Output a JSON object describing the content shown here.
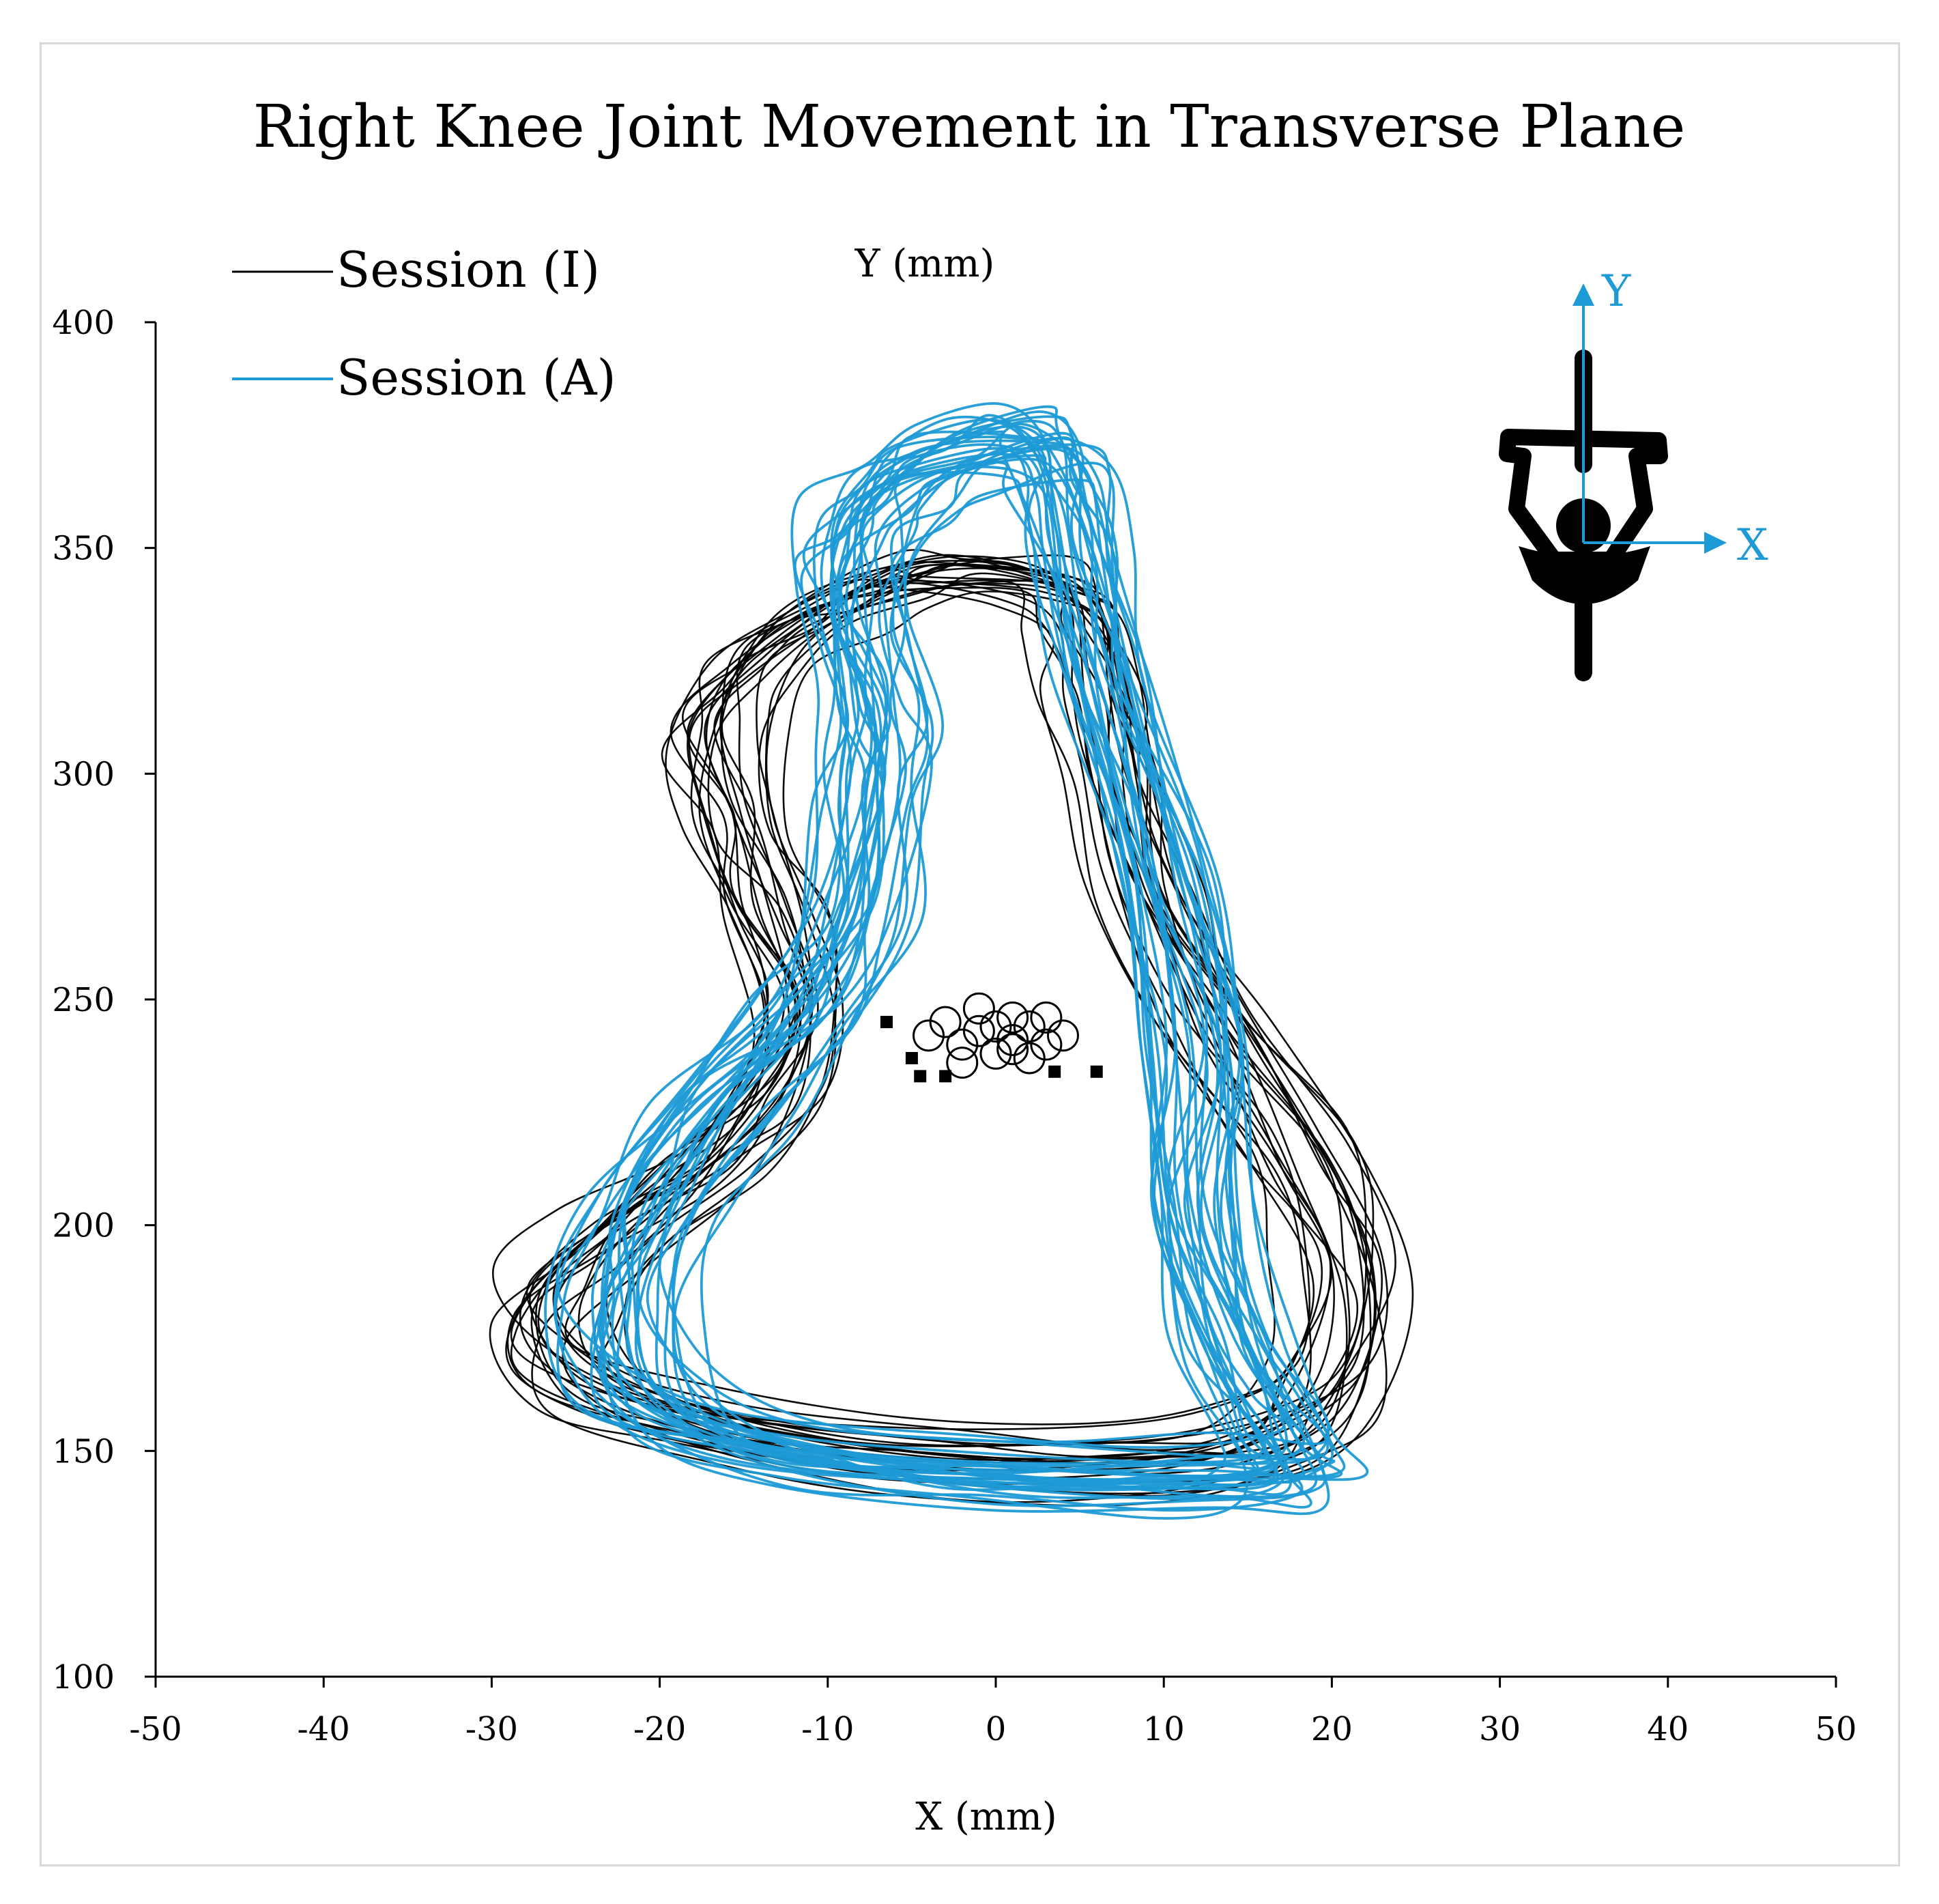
{
  "chart_data": {
    "type": "line",
    "title": "Right Knee Joint Movement in Transverse Plane",
    "xlabel": "X (mm)",
    "ylabel": "Y (mm)",
    "xlim": [
      -50,
      50
    ],
    "ylim": [
      100,
      400
    ],
    "xticks": [
      -50,
      -40,
      -30,
      -20,
      -10,
      0,
      10,
      20,
      30,
      40,
      50
    ],
    "yticks": [
      100,
      150,
      200,
      250,
      300,
      350,
      400
    ],
    "grid": false,
    "legend_position": "top-left",
    "series": [
      {
        "name": "Session (I)",
        "color": "#000000",
        "cycles": 22,
        "loop": [
          [
            -7,
            343
          ],
          [
            -11,
            335
          ],
          [
            -15,
            325
          ],
          [
            -17,
            310
          ],
          [
            -16,
            290
          ],
          [
            -14,
            270
          ],
          [
            -12,
            248
          ],
          [
            -14,
            228
          ],
          [
            -18,
            212
          ],
          [
            -23,
            198
          ],
          [
            -27,
            182
          ],
          [
            -26,
            166
          ],
          [
            -18,
            155
          ],
          [
            -5,
            148
          ],
          [
            8,
            147
          ],
          [
            16,
            152
          ],
          [
            20,
            165
          ],
          [
            21,
            190
          ],
          [
            18,
            215
          ],
          [
            13,
            245
          ],
          [
            9,
            275
          ],
          [
            7,
            300
          ],
          [
            6,
            320
          ],
          [
            5,
            335
          ],
          [
            3,
            343
          ],
          [
            -3,
            345
          ]
        ]
      },
      {
        "name": "Session (A)",
        "color": "#1e9ad6",
        "cycles": 30,
        "loop": [
          [
            2,
            374
          ],
          [
            -3,
            370
          ],
          [
            -6,
            362
          ],
          [
            -8,
            352
          ],
          [
            -8,
            335
          ],
          [
            -7,
            315
          ],
          [
            -7,
            298
          ],
          [
            -8,
            270
          ],
          [
            -11,
            248
          ],
          [
            -16,
            228
          ],
          [
            -20,
            205
          ],
          [
            -22,
            182
          ],
          [
            -20,
            162
          ],
          [
            -12,
            150
          ],
          [
            0,
            145
          ],
          [
            12,
            144
          ],
          [
            18,
            146
          ],
          [
            17,
            155
          ],
          [
            14,
            175
          ],
          [
            12,
            205
          ],
          [
            12,
            240
          ],
          [
            10,
            280
          ],
          [
            7,
            320
          ],
          [
            5,
            350
          ],
          [
            4,
            368
          ]
        ]
      }
    ],
    "markers": {
      "circles": [
        [
          -3,
          245
        ],
        [
          -1,
          243
        ],
        [
          1,
          241
        ],
        [
          2,
          244
        ],
        [
          -2,
          240
        ],
        [
          0,
          238
        ],
        [
          3,
          240
        ],
        [
          1,
          246
        ],
        [
          -4,
          242
        ],
        [
          2,
          237
        ],
        [
          -1,
          248
        ],
        [
          4,
          242
        ],
        [
          0,
          244
        ],
        [
          3,
          246
        ],
        [
          -2,
          236
        ],
        [
          1,
          239
        ]
      ],
      "squares": [
        [
          -6.5,
          245
        ],
        [
          -5,
          237
        ],
        [
          -4.5,
          233
        ],
        [
          -3,
          233
        ],
        [
          3.5,
          234
        ],
        [
          6,
          234
        ]
      ]
    },
    "inset_axes": {
      "x_label": "X",
      "y_label": "Y",
      "color": "#1e9ad6"
    }
  }
}
